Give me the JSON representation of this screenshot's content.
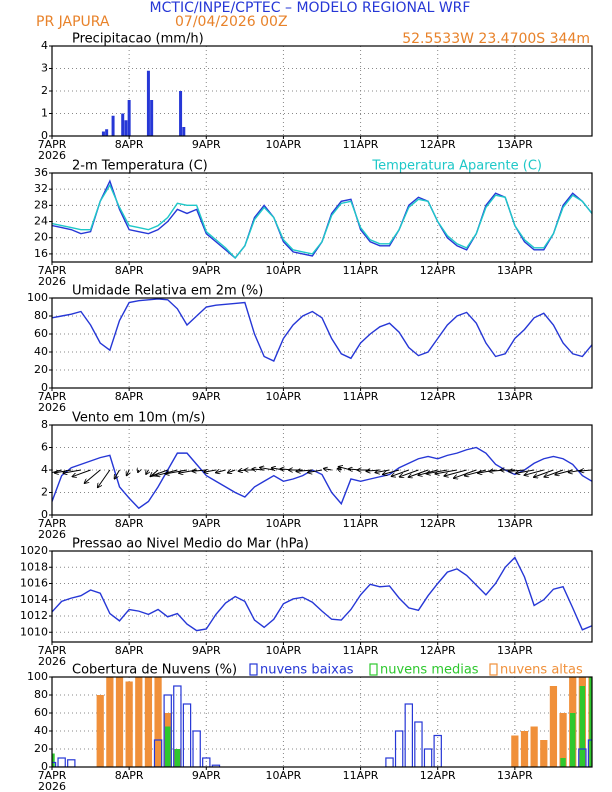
{
  "header": {
    "title": "MCTIC/INPE/CPTEC – MODELO REGIONAL WRF",
    "location": "PR JAPURA",
    "run": "07/04/2026 00Z",
    "coords": "52.5533W 23.4700S 344m"
  },
  "chart_data": [
    {
      "type": "bar",
      "title": "Precipitacao (mm/h)",
      "x_sublabel": "2026",
      "x": [
        16,
        17,
        19,
        22,
        23,
        24,
        30,
        31,
        40,
        41
      ],
      "values": [
        0.2,
        0.3,
        0.9,
        1.0,
        0.7,
        1.6,
        2.9,
        1.6,
        2.0,
        0.4
      ],
      "color": "#2637d6",
      "xlim": [
        0,
        168
      ],
      "xticks": [
        {
          "value": 0,
          "label": "7APR"
        },
        {
          "value": 24,
          "label": "8APR"
        },
        {
          "value": 48,
          "label": "9APR"
        },
        {
          "value": 72,
          "label": "10APR"
        },
        {
          "value": 96,
          "label": "11APR"
        },
        {
          "value": 120,
          "label": "12APR"
        },
        {
          "value": 144,
          "label": "13APR"
        }
      ],
      "ylim": [
        0,
        4
      ],
      "yticks": [
        0,
        1,
        2,
        3,
        4
      ],
      "grid": true
    },
    {
      "type": "line",
      "x_sublabel": "2026",
      "x": [
        0,
        3,
        6,
        9,
        12,
        15,
        18,
        21,
        24,
        27,
        30,
        33,
        36,
        39,
        42,
        45,
        48,
        51,
        54,
        57,
        60,
        63,
        66,
        69,
        72,
        75,
        78,
        81,
        84,
        87,
        90,
        93,
        96,
        99,
        102,
        105,
        108,
        111,
        114,
        117,
        120,
        123,
        126,
        129,
        132,
        135,
        138,
        141,
        144,
        147,
        150,
        153,
        156,
        159,
        162,
        165,
        168
      ],
      "series": [
        {
          "name": "2-m Temperatura (C)",
          "color": "#2637d6",
          "values": [
            23,
            22.5,
            22,
            21,
            21.5,
            29,
            34,
            27,
            22,
            21.5,
            21,
            22,
            24,
            27,
            26,
            27,
            21,
            19,
            17,
            15,
            18,
            25,
            28,
            25,
            19,
            16.5,
            16,
            15.5,
            19,
            26,
            29,
            29.5,
            22,
            19,
            18,
            18,
            22,
            28,
            30,
            29,
            24,
            20,
            18,
            17,
            21,
            28,
            31,
            30,
            23,
            19,
            17,
            17,
            21,
            28,
            31,
            29,
            26
          ]
        },
        {
          "name": "Temperatura Aparente (C)",
          "color": "#1ec8c8",
          "values": [
            23.5,
            23,
            22.5,
            22,
            22,
            29,
            33,
            27.5,
            23,
            22.5,
            22,
            23,
            25,
            28.5,
            28,
            28,
            21.5,
            19.5,
            17.5,
            15,
            18,
            24.5,
            27.5,
            25,
            19.5,
            17,
            16.5,
            16,
            19,
            25.5,
            28.5,
            29,
            22.5,
            19.5,
            18.5,
            18.5,
            22,
            27.5,
            29.5,
            29,
            24,
            20.5,
            18.5,
            17.5,
            21,
            27.5,
            30.5,
            30,
            23,
            19.5,
            17.5,
            17.5,
            21,
            27.5,
            30.5,
            29,
            26
          ]
        }
      ],
      "xlim": [
        0,
        168
      ],
      "xticks": [
        {
          "value": 0,
          "label": "7APR"
        },
        {
          "value": 24,
          "label": "8APR"
        },
        {
          "value": 48,
          "label": "9APR"
        },
        {
          "value": 72,
          "label": "10APR"
        },
        {
          "value": 96,
          "label": "11APR"
        },
        {
          "value": 120,
          "label": "12APR"
        },
        {
          "value": 144,
          "label": "13APR"
        }
      ],
      "ylim": [
        14,
        36
      ],
      "yticks": [
        16,
        20,
        24,
        28,
        32,
        36
      ],
      "grid": true
    },
    {
      "type": "line",
      "title": "Umidade Relativa em 2m (%)",
      "x_sublabel": "2026",
      "x": [
        0,
        3,
        6,
        9,
        12,
        15,
        18,
        21,
        24,
        27,
        30,
        33,
        36,
        39,
        42,
        45,
        48,
        51,
        54,
        57,
        60,
        63,
        66,
        69,
        72,
        75,
        78,
        81,
        84,
        87,
        90,
        93,
        96,
        99,
        102,
        105,
        108,
        111,
        114,
        117,
        120,
        123,
        126,
        129,
        132,
        135,
        138,
        141,
        144,
        147,
        150,
        153,
        156,
        159,
        162,
        165,
        168
      ],
      "series": [
        {
          "color": "#2637d6",
          "values": [
            78,
            80,
            82,
            85,
            70,
            50,
            42,
            75,
            95,
            97,
            98,
            99,
            98,
            88,
            70,
            80,
            90,
            92,
            93,
            94,
            95,
            60,
            35,
            30,
            55,
            70,
            80,
            85,
            78,
            55,
            38,
            33,
            50,
            60,
            68,
            72,
            62,
            45,
            36,
            40,
            55,
            70,
            80,
            84,
            72,
            50,
            35,
            38,
            55,
            65,
            78,
            83,
            70,
            50,
            38,
            35,
            48
          ]
        }
      ],
      "xlim": [
        0,
        168
      ],
      "xticks": [
        {
          "value": 0,
          "label": "7APR"
        },
        {
          "value": 24,
          "label": "8APR"
        },
        {
          "value": 48,
          "label": "9APR"
        },
        {
          "value": 72,
          "label": "10APR"
        },
        {
          "value": 96,
          "label": "11APR"
        },
        {
          "value": 120,
          "label": "12APR"
        },
        {
          "value": 144,
          "label": "13APR"
        }
      ],
      "ylim": [
        0,
        100
      ],
      "yticks": [
        0,
        20,
        40,
        60,
        80,
        100
      ],
      "grid": true
    },
    {
      "type": "line",
      "title": "Vento em 10m (m/s)",
      "x_sublabel": "2026",
      "x": [
        0,
        3,
        6,
        9,
        12,
        15,
        18,
        21,
        24,
        27,
        30,
        33,
        36,
        39,
        42,
        45,
        48,
        51,
        54,
        57,
        60,
        63,
        66,
        69,
        72,
        75,
        78,
        81,
        84,
        87,
        90,
        93,
        96,
        99,
        102,
        105,
        108,
        111,
        114,
        117,
        120,
        123,
        126,
        129,
        132,
        135,
        138,
        141,
        144,
        147,
        150,
        153,
        156,
        159,
        162,
        165,
        168
      ],
      "series": [
        {
          "color": "#2637d6",
          "values": [
            1.2,
            3.5,
            4.2,
            4.5,
            4.8,
            5.1,
            5.3,
            2.5,
            1.5,
            0.6,
            1.2,
            2.5,
            4,
            5.5,
            5.5,
            4.5,
            3.5,
            3,
            2.5,
            2,
            1.6,
            2.5,
            3,
            3.5,
            3,
            3.2,
            3.5,
            4,
            3.6,
            2,
            1,
            3.2,
            3,
            3.2,
            3.4,
            3.6,
            4.2,
            4.6,
            5,
            5.2,
            5,
            5.3,
            5.5,
            5.8,
            6,
            5.5,
            4.5,
            4,
            3.6,
            4,
            4.6,
            5,
            5.2,
            5,
            4.5,
            3.5,
            3
          ]
        }
      ],
      "vectors": {
        "color": "#000000",
        "direction": [
          250,
          255,
          260,
          260,
          250,
          230,
          215,
          210,
          205,
          200,
          210,
          230,
          250,
          255,
          260,
          260,
          265,
          260,
          255,
          250,
          260,
          270,
          275,
          280,
          280,
          275,
          270,
          265,
          260,
          280,
          290,
          285,
          275,
          270,
          265,
          260,
          255,
          250,
          250,
          250,
          255,
          260,
          260,
          255,
          250,
          255,
          260,
          265,
          270,
          265,
          260,
          255,
          250,
          250,
          255,
          260,
          265
        ]
      },
      "xlim": [
        0,
        168
      ],
      "xticks": [
        {
          "value": 0,
          "label": "7APR"
        },
        {
          "value": 24,
          "label": "8APR"
        },
        {
          "value": 48,
          "label": "9APR"
        },
        {
          "value": 72,
          "label": "10APR"
        },
        {
          "value": 96,
          "label": "11APR"
        },
        {
          "value": 120,
          "label": "12APR"
        },
        {
          "value": 144,
          "label": "13APR"
        }
      ],
      "ylim": [
        0,
        8
      ],
      "yticks": [
        0,
        2,
        4,
        6,
        8
      ],
      "grid": true
    },
    {
      "type": "line",
      "title": "Pressao ao Nivel Medio do Mar (hPa)",
      "x_sublabel": "2026",
      "x": [
        0,
        3,
        6,
        9,
        12,
        15,
        18,
        21,
        24,
        27,
        30,
        33,
        36,
        39,
        42,
        45,
        48,
        51,
        54,
        57,
        60,
        63,
        66,
        69,
        72,
        75,
        78,
        81,
        84,
        87,
        90,
        93,
        96,
        99,
        102,
        105,
        108,
        111,
        114,
        117,
        120,
        123,
        126,
        129,
        132,
        135,
        138,
        141,
        144,
        147,
        150,
        153,
        156,
        159,
        162,
        165,
        168
      ],
      "series": [
        {
          "color": "#2637d6",
          "values": [
            1012.5,
            1013.8,
            1014.2,
            1014.5,
            1015.2,
            1014.8,
            1012.3,
            1011.4,
            1012.8,
            1012.6,
            1012.2,
            1012.8,
            1011.9,
            1012.3,
            1011,
            1010.2,
            1010.4,
            1012.2,
            1013.6,
            1014.4,
            1013.8,
            1011.5,
            1010.6,
            1011.6,
            1013.5,
            1014.1,
            1014.3,
            1013.7,
            1012.6,
            1011.6,
            1011.5,
            1012.8,
            1014.6,
            1015.9,
            1015.6,
            1015.7,
            1014.2,
            1013,
            1012.7,
            1014.5,
            1016,
            1017.4,
            1017.8,
            1017,
            1015.8,
            1014.6,
            1016,
            1018,
            1019.2,
            1016.8,
            1013.3,
            1014,
            1015.3,
            1015.6,
            1013,
            1010.3,
            1010.8
          ]
        }
      ],
      "xlim": [
        0,
        168
      ],
      "xticks": [
        {
          "value": 0,
          "label": "7APR"
        },
        {
          "value": 24,
          "label": "8APR"
        },
        {
          "value": 48,
          "label": "9APR"
        },
        {
          "value": 72,
          "label": "10APR"
        },
        {
          "value": 96,
          "label": "11APR"
        },
        {
          "value": 120,
          "label": "12APR"
        },
        {
          "value": 144,
          "label": "13APR"
        }
      ],
      "ylim": [
        1008.8,
        1020
      ],
      "yticks": [
        1010,
        1012,
        1014,
        1016,
        1018,
        1020
      ],
      "grid": true
    },
    {
      "type": "bar",
      "title": "Cobertura de Nuvens (%)",
      "x_sublabel": "2026",
      "x": [
        0,
        3,
        6,
        9,
        12,
        15,
        18,
        21,
        24,
        27,
        30,
        33,
        36,
        39,
        42,
        45,
        48,
        51,
        54,
        57,
        60,
        63,
        66,
        69,
        72,
        75,
        78,
        81,
        84,
        87,
        90,
        93,
        96,
        99,
        102,
        105,
        108,
        111,
        114,
        117,
        120,
        123,
        126,
        129,
        132,
        135,
        138,
        141,
        144,
        147,
        150,
        153,
        156,
        159,
        162,
        165,
        168
      ],
      "series": [
        {
          "name": "nuvens altas",
          "color": "#f0903a",
          "values": [
            0,
            0,
            0,
            0,
            0,
            80,
            100,
            100,
            95,
            100,
            100,
            100,
            60,
            20,
            0,
            0,
            0,
            0,
            0,
            0,
            0,
            0,
            0,
            0,
            0,
            0,
            0,
            0,
            0,
            0,
            0,
            0,
            0,
            0,
            0,
            0,
            0,
            0,
            0,
            0,
            0,
            0,
            0,
            0,
            0,
            0,
            0,
            0,
            35,
            40,
            45,
            30,
            90,
            60,
            100,
            100,
            100
          ]
        },
        {
          "name": "nuvens medias",
          "color": "#2ec82e",
          "values": [
            15,
            0,
            0,
            0,
            0,
            0,
            0,
            0,
            0,
            0,
            0,
            0,
            45,
            20,
            0,
            0,
            0,
            0,
            0,
            0,
            0,
            0,
            0,
            0,
            0,
            0,
            0,
            0,
            0,
            0,
            0,
            0,
            0,
            0,
            0,
            0,
            0,
            0,
            0,
            0,
            0,
            0,
            0,
            0,
            0,
            0,
            0,
            0,
            0,
            0,
            0,
            0,
            0,
            10,
            60,
            90,
            100
          ]
        },
        {
          "name": "nuvens baixas",
          "color": "#2637d6",
          "outline": true,
          "values": [
            5,
            10,
            8,
            0,
            0,
            0,
            0,
            0,
            0,
            0,
            0,
            30,
            80,
            90,
            70,
            40,
            10,
            2,
            0,
            0,
            0,
            0,
            0,
            0,
            0,
            0,
            0,
            0,
            0,
            0,
            0,
            0,
            0,
            0,
            0,
            10,
            40,
            70,
            50,
            20,
            35,
            0,
            0,
            0,
            0,
            0,
            0,
            0,
            0,
            0,
            0,
            0,
            0,
            0,
            0,
            20,
            30
          ]
        }
      ],
      "legend_order": [
        2,
        1,
        0
      ],
      "xlim": [
        0,
        168
      ],
      "xticks": [
        {
          "value": 0,
          "label": "7APR"
        },
        {
          "value": 24,
          "label": "8APR"
        },
        {
          "value": 48,
          "label": "9APR"
        },
        {
          "value": 72,
          "label": "10APR"
        },
        {
          "value": 96,
          "label": "11APR"
        },
        {
          "value": 120,
          "label": "12APR"
        },
        {
          "value": 144,
          "label": "13APR"
        }
      ],
      "ylim": [
        0,
        100
      ],
      "yticks": [
        0,
        20,
        40,
        60,
        80,
        100
      ],
      "grid": true
    }
  ]
}
